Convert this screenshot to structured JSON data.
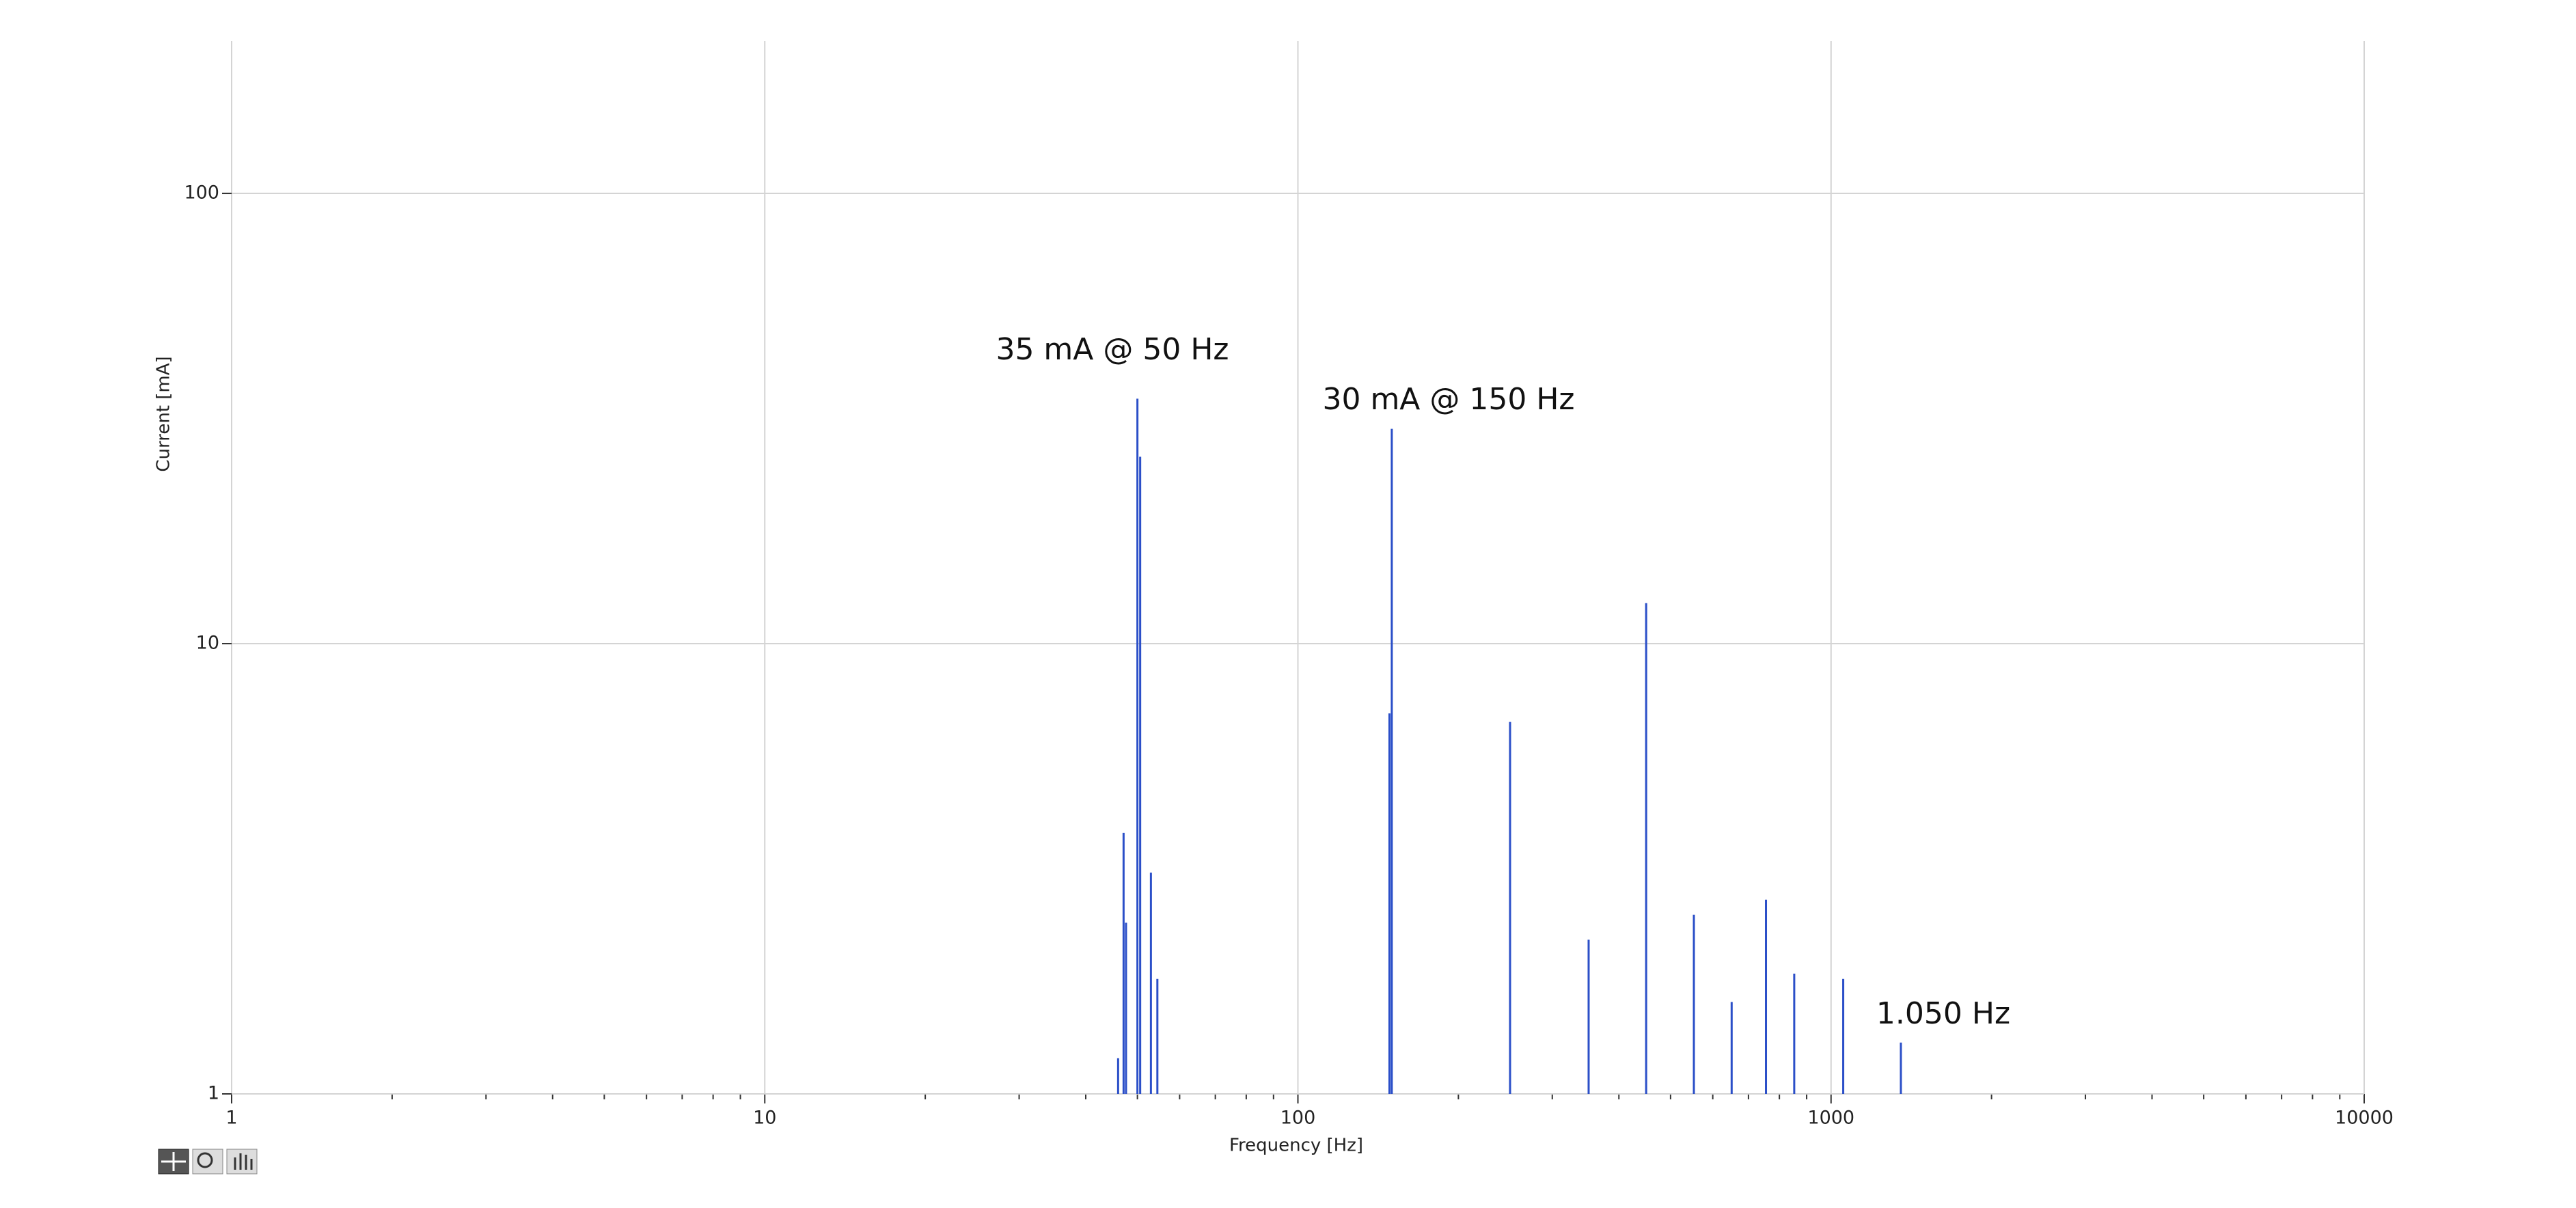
{
  "chart_data": {
    "type": "stem",
    "x_label": "Frequency [Hz]",
    "y_label": "Current [mA]",
    "annotations": [
      "35 mA @ 50 Hz",
      "30 mA @ 150 Hz",
      "1.050 Hz"
    ],
    "xlog": true,
    "ylog": true,
    "grid": true,
    "xlim": [
      1,
      10000
    ],
    "ylim": [
      1,
      218
    ],
    "xticks": [
      1,
      10,
      100,
      1000,
      10000
    ],
    "xminor_ticks": [
      2,
      3,
      4,
      5,
      6,
      7,
      8,
      9,
      20,
      30,
      40,
      50,
      60,
      70,
      80,
      90,
      200,
      300,
      400,
      500,
      600,
      700,
      800,
      900,
      2000,
      3000,
      4000,
      5000,
      6000,
      7000,
      8000,
      9000
    ],
    "yticks": [
      1,
      10,
      100
    ],
    "color": "#2b4fc8",
    "x": [
      46,
      47.1,
      47.6,
      50,
      50.6,
      53,
      54.5,
      148.5,
      150,
      250,
      351,
      450,
      553,
      651,
      755,
      853,
      1054,
      1352
    ],
    "values": [
      1.2,
      3.8,
      2.4,
      35,
      26,
      3.1,
      1.8,
      7,
      30,
      6.7,
      2.2,
      12.3,
      2.5,
      1.6,
      2.7,
      1.85,
      1.8,
      1.3
    ]
  }
}
